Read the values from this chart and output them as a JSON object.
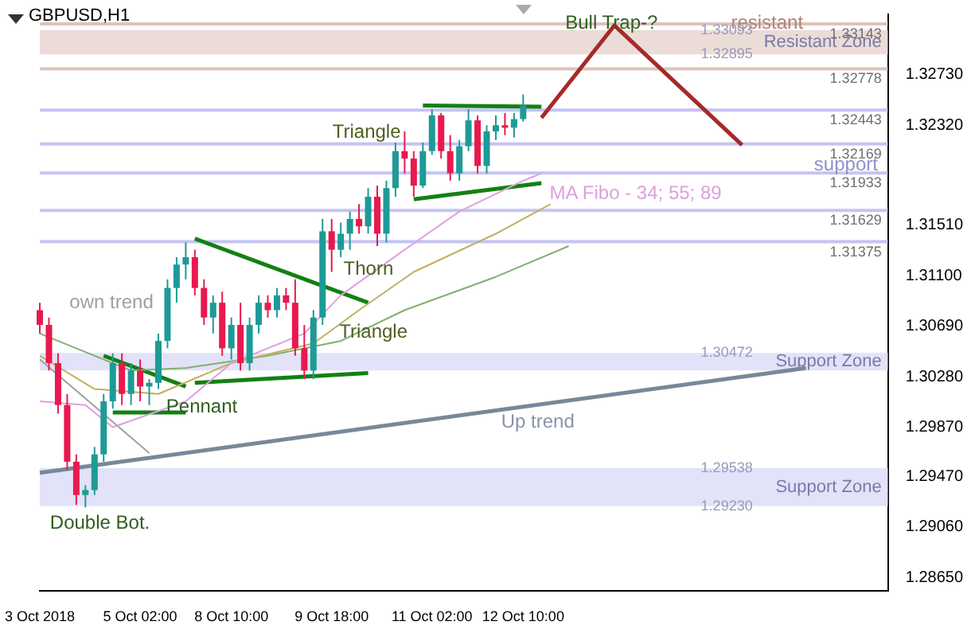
{
  "chart_data": {
    "type": "candlestick",
    "title": "GBPUSD,H1",
    "categories": [
      "3 Oct 2018",
      null,
      null,
      null,
      null,
      null,
      null,
      null,
      null,
      null,
      null,
      "5 Oct 02:00",
      null,
      null,
      null,
      null,
      null,
      null,
      null,
      null,
      null,
      "8 Oct 10:00",
      null,
      null,
      null,
      null,
      null,
      null,
      null,
      null,
      null,
      null,
      "9 Oct 18:00",
      null,
      null,
      null,
      null,
      null,
      null,
      null,
      null,
      null,
      null,
      "11 Oct 02:00",
      null,
      null,
      null,
      null,
      null,
      null,
      null,
      null,
      null,
      "12 Oct 10:00",
      null,
      null,
      null,
      null,
      null,
      null,
      null,
      null,
      null,
      null,
      null,
      null,
      null,
      null,
      null,
      null,
      null,
      null,
      null,
      null,
      null,
      null,
      null,
      null,
      null,
      null,
      null,
      null,
      null,
      null,
      null,
      null,
      null,
      null,
      null,
      null,
      null,
      null,
      null,
      null
    ],
    "ohlc": [
      [
        1.3082,
        1.3088,
        1.3063,
        1.307
      ],
      [
        1.307,
        1.3076,
        1.3033,
        1.3039
      ],
      [
        1.3039,
        1.3047,
        1.2998,
        1.3005
      ],
      [
        1.3005,
        1.3014,
        1.2952,
        1.2959
      ],
      [
        1.2959,
        1.2965,
        1.2924,
        1.2932
      ],
      [
        1.2932,
        1.294,
        1.2922,
        1.2936
      ],
      [
        1.2936,
        1.2971,
        1.2932,
        1.2965
      ],
      [
        1.2965,
        1.3014,
        1.2959,
        1.3008
      ],
      [
        1.3008,
        1.3047,
        1.3002,
        1.3039
      ],
      [
        1.3039,
        1.3047,
        1.3005,
        1.3014
      ],
      [
        1.3014,
        1.3039,
        1.3005,
        1.3033
      ],
      [
        1.3033,
        1.3042,
        1.3008,
        1.302
      ],
      [
        1.302,
        1.3026,
        1.3005,
        1.3023
      ],
      [
        1.3023,
        1.3063,
        1.3018,
        1.3057
      ],
      [
        1.3057,
        1.3107,
        1.3051,
        1.31
      ],
      [
        1.31,
        1.3125,
        1.3088,
        1.3119
      ],
      [
        1.3119,
        1.3137,
        1.3107,
        1.3125
      ],
      [
        1.3125,
        1.3131,
        1.3094,
        1.31
      ],
      [
        1.31,
        1.3107,
        1.307,
        1.3076
      ],
      [
        1.3076,
        1.3094,
        1.3063,
        1.3088
      ],
      [
        1.3088,
        1.3097,
        1.3045,
        1.3051
      ],
      [
        1.3051,
        1.3076,
        1.3042,
        1.307
      ],
      [
        1.307,
        1.3088,
        1.3033,
        1.3039
      ],
      [
        1.3039,
        1.3076,
        1.3033,
        1.307
      ],
      [
        1.307,
        1.3094,
        1.3063,
        1.3088
      ],
      [
        1.3088,
        1.3094,
        1.3076,
        1.3082
      ],
      [
        1.3082,
        1.31,
        1.3076,
        1.3094
      ],
      [
        1.3094,
        1.31,
        1.3082,
        1.3088
      ],
      [
        1.3088,
        1.3107,
        1.3045,
        1.3051
      ],
      [
        1.3051,
        1.307,
        1.3026,
        1.3033
      ],
      [
        1.3033,
        1.3082,
        1.3026,
        1.3076
      ],
      [
        1.3076,
        1.3156,
        1.307,
        1.3146
      ],
      [
        1.3146,
        1.3156,
        1.3113,
        1.3131
      ],
      [
        1.3131,
        1.3153,
        1.3125,
        1.3144
      ],
      [
        1.3144,
        1.3162,
        1.3131,
        1.3156
      ],
      [
        1.3156,
        1.3168,
        1.3144,
        1.315
      ],
      [
        1.315,
        1.3181,
        1.3144,
        1.3174
      ],
      [
        1.3174,
        1.3183,
        1.3134,
        1.3144
      ],
      [
        1.3144,
        1.3187,
        1.3137,
        1.3181
      ],
      [
        1.3181,
        1.3218,
        1.3174,
        1.3211
      ],
      [
        1.3211,
        1.3227,
        1.3193,
        1.3205
      ],
      [
        1.3205,
        1.3211,
        1.3174,
        1.3183
      ],
      [
        1.3183,
        1.3218,
        1.3181,
        1.3211
      ],
      [
        1.3211,
        1.3245,
        1.3208,
        1.324
      ],
      [
        1.324,
        1.3242,
        1.3205,
        1.3211
      ],
      [
        1.3211,
        1.3224,
        1.3187,
        1.3193
      ],
      [
        1.3193,
        1.322,
        1.3187,
        1.3215
      ],
      [
        1.3215,
        1.3245,
        1.3211,
        1.3236
      ],
      [
        1.3236,
        1.324,
        1.3193,
        1.3199
      ],
      [
        1.3199,
        1.3232,
        1.3193,
        1.3227
      ],
      [
        1.3227,
        1.324,
        1.322,
        1.3232
      ],
      [
        1.3232,
        1.3242,
        1.3224,
        1.323
      ],
      [
        1.323,
        1.3242,
        1.3222,
        1.3237
      ],
      [
        1.3237,
        1.3257,
        1.3235,
        1.3248
      ],
      null,
      null,
      null,
      null,
      null,
      null,
      null,
      null,
      null,
      null,
      null,
      null,
      null,
      null,
      null,
      null,
      null,
      null,
      null,
      null,
      null,
      null,
      null,
      null,
      null,
      null,
      null,
      null,
      null,
      null,
      null,
      null,
      null,
      null,
      null,
      null,
      null,
      null,
      null,
      null
    ],
    "colors": [
      "#e8194f",
      "#e8194f",
      "#e8194f",
      "#e8194f",
      "#e8194f",
      "#1e9a96",
      "#1e9a96",
      "#1e9a96",
      "#1e9a96",
      "#e8194f",
      "#1e9a96",
      "#e8194f",
      "#1e9a96",
      "#1e9a96",
      "#1e9a96",
      "#1e9a96",
      "#1e9a96",
      "#e8194f",
      "#e8194f",
      "#1e9a96",
      "#e8194f",
      "#1e9a96",
      "#e8194f",
      "#1e9a96",
      "#1e9a96",
      "#e8194f",
      "#1e9a96",
      "#e8194f",
      "#e8194f",
      "#e8194f",
      "#1e9a96",
      "#1e9a96",
      "#e8194f",
      "#1e9a96",
      "#1e9a96",
      "#e8194f",
      "#1e9a96",
      "#e8194f",
      "#1e9a96",
      "#1e9a96",
      "#e8194f",
      "#e8194f",
      "#1e9a96",
      "#1e9a96",
      "#e8194f",
      "#e8194f",
      "#1e9a96",
      "#1e9a96",
      "#e8194f",
      "#1e9a96",
      "#1e9a96",
      "#e8194f",
      "#1e9a96",
      "#1e9a96",
      null,
      null,
      null,
      null,
      null,
      null,
      null,
      null,
      null,
      null,
      null,
      null,
      null,
      null,
      null,
      null,
      null,
      null,
      null,
      null,
      null,
      null,
      null,
      null,
      null,
      null,
      null,
      null,
      null,
      null,
      null,
      null,
      null,
      null,
      null,
      null,
      null,
      null,
      null,
      null
    ],
    "series": [
      {
        "type": "line",
        "color": "#e0a0e0",
        "values": [
          1.3008,
          null,
          null,
          null,
          null,
          1.3005,
          null,
          null,
          1.2987,
          null,
          null,
          null,
          null,
          null,
          null,
          null,
          1.3008,
          null,
          null,
          null,
          null,
          1.3039,
          null,
          null,
          null,
          null,
          null,
          null,
          null,
          1.3063,
          null,
          null,
          null,
          1.3094,
          null,
          null,
          null,
          null,
          null,
          null,
          1.3131,
          null,
          null,
          null,
          null,
          null,
          1.3162,
          null,
          null,
          null,
          null,
          null,
          null,
          1.3187,
          null,
          1.3193,
          null,
          null,
          null,
          null,
          null,
          null,
          null,
          null,
          null,
          null,
          null,
          null,
          null,
          null,
          null,
          null,
          null,
          null,
          null,
          null,
          null,
          null,
          null,
          null,
          null,
          null,
          null,
          null,
          null,
          null,
          null,
          null,
          null,
          null,
          null,
          null,
          null,
          null
        ]
      },
      {
        "type": "line",
        "color": "#c0b060",
        "values": [
          1.3045,
          null,
          null,
          null,
          null,
          null,
          1.3018,
          null,
          null,
          null,
          null,
          null,
          null,
          1.3014,
          null,
          null,
          null,
          null,
          null,
          null,
          null,
          1.3039,
          null,
          null,
          null,
          null,
          null,
          null,
          null,
          null,
          1.3055,
          null,
          null,
          null,
          null,
          1.3082,
          null,
          null,
          null,
          null,
          null,
          1.3113,
          null,
          null,
          null,
          null,
          null,
          null,
          null,
          null,
          1.3144,
          null,
          null,
          null,
          null,
          null,
          1.3168,
          null,
          null,
          null,
          null,
          null,
          null,
          null,
          null,
          null,
          null,
          null,
          null,
          null,
          null,
          null,
          null,
          null,
          null,
          null,
          null,
          null,
          null,
          null,
          null,
          null,
          null,
          null,
          null,
          null,
          null,
          null,
          null,
          null,
          null,
          null,
          null,
          null
        ]
      },
      {
        "type": "line",
        "color": "#80b070",
        "values": [
          1.3063,
          null,
          null,
          null,
          null,
          null,
          null,
          null,
          null,
          null,
          1.3033,
          null,
          null,
          null,
          null,
          null,
          1.3035,
          null,
          null,
          null,
          null,
          null,
          null,
          null,
          null,
          1.3045,
          null,
          null,
          null,
          null,
          null,
          null,
          null,
          1.3057,
          null,
          null,
          null,
          null,
          null,
          null,
          1.3082,
          null,
          null,
          null,
          null,
          null,
          null,
          null,
          null,
          null,
          1.3109,
          null,
          null,
          null,
          null,
          null,
          null,
          null,
          1.3134,
          null,
          null,
          null,
          null,
          null,
          null,
          null,
          null,
          null,
          null,
          null,
          null,
          null,
          null,
          null,
          null,
          null,
          null,
          null,
          null,
          null,
          null,
          null,
          null,
          null,
          null,
          null,
          null,
          null,
          null,
          null,
          null,
          null,
          null,
          null
        ]
      },
      {
        "type": "line",
        "color": "#a0a0a0",
        "values": [
          1.3042,
          null,
          null,
          null,
          null,
          null,
          null,
          null,
          null,
          null,
          null,
          null,
          1.2966,
          null,
          null,
          null,
          null,
          null,
          null,
          null,
          null,
          null,
          null,
          null,
          null,
          null,
          null,
          null,
          null,
          null,
          null,
          null,
          null,
          null,
          null,
          null,
          null,
          null,
          null,
          null,
          null,
          null,
          null,
          null,
          null,
          null,
          null,
          null,
          null,
          null,
          null,
          null,
          null,
          null,
          null,
          null,
          null,
          null,
          null,
          null,
          null,
          null,
          null,
          null,
          null,
          null,
          null,
          null,
          null,
          null,
          null,
          null,
          null,
          null,
          null,
          null,
          null,
          null,
          null,
          null,
          null,
          null,
          null,
          null,
          null,
          null,
          null,
          null,
          null,
          null,
          null,
          null,
          null,
          null
        ]
      },
      {
        "type": "line",
        "color": "#778899",
        "values": [
          1.295,
          null,
          null,
          null,
          null,
          null,
          null,
          null,
          null,
          null,
          null,
          null,
          null,
          null,
          null,
          null,
          null,
          null,
          null,
          null,
          null,
          null,
          null,
          null,
          null,
          null,
          null,
          null,
          null,
          null,
          null,
          null,
          null,
          null,
          null,
          null,
          null,
          null,
          null,
          null,
          null,
          null,
          null,
          null,
          null,
          null,
          null,
          null,
          null,
          null,
          null,
          null,
          null,
          null,
          null,
          null,
          null,
          null,
          null,
          null,
          null,
          null,
          null,
          null,
          null,
          null,
          null,
          null,
          null,
          null,
          null,
          null,
          null,
          null,
          null,
          null,
          null,
          null,
          null,
          null,
          null,
          null,
          null,
          null,
          1.3035,
          null,
          null,
          null,
          null,
          null,
          null,
          null,
          null,
          null
        ]
      },
      {
        "type": "line",
        "color": "#138013",
        "values": [
          null,
          null,
          null,
          null,
          null,
          null,
          null,
          1.3045,
          null,
          null,
          null,
          null,
          null,
          null,
          null,
          null,
          1.302,
          null,
          null,
          null,
          null,
          null,
          null,
          null,
          null,
          null,
          null,
          null,
          null,
          null,
          null,
          null,
          null,
          null,
          null,
          null,
          null,
          null,
          null,
          null,
          null,
          null,
          null,
          null,
          null,
          null,
          null,
          null,
          null,
          null,
          null,
          null,
          null,
          null,
          null,
          null,
          null,
          null,
          null,
          null,
          null,
          null,
          null,
          null,
          null,
          null,
          null,
          null,
          null,
          null,
          null,
          null,
          null,
          null,
          null,
          null,
          null,
          null,
          null,
          null,
          null,
          null,
          null,
          null,
          null,
          null,
          null,
          null,
          null,
          null,
          null,
          null,
          null,
          null
        ]
      },
      {
        "type": "line",
        "color": "#138013",
        "values": [
          null,
          null,
          null,
          null,
          null,
          null,
          null,
          null,
          1.2999,
          null,
          null,
          null,
          null,
          null,
          null,
          null,
          1.2999,
          null,
          null,
          null,
          null,
          null,
          null,
          null,
          null,
          null,
          null,
          null,
          null,
          null,
          null,
          null,
          null,
          null,
          null,
          null,
          null,
          null,
          null,
          null,
          null,
          null,
          null,
          null,
          null,
          null,
          null,
          null,
          null,
          null,
          null,
          null,
          null,
          null,
          null,
          null,
          null,
          null,
          null,
          null,
          null,
          null,
          null,
          null,
          null,
          null,
          null,
          null,
          null,
          null,
          null,
          null,
          null,
          null,
          null,
          null,
          null,
          null,
          null,
          null,
          null,
          null,
          null,
          null,
          null,
          null,
          null,
          null,
          null,
          null,
          null,
          null,
          null,
          null
        ]
      },
      {
        "type": "line",
        "color": "#138013",
        "values": [
          null,
          null,
          null,
          null,
          null,
          null,
          null,
          null,
          null,
          null,
          null,
          null,
          null,
          null,
          null,
          null,
          null,
          1.314,
          null,
          null,
          null,
          null,
          null,
          null,
          null,
          null,
          null,
          null,
          null,
          null,
          null,
          null,
          null,
          null,
          null,
          null,
          1.3088,
          null,
          null,
          null,
          null,
          null,
          null,
          null,
          null,
          null,
          null,
          null,
          null,
          null,
          null,
          null,
          null,
          null,
          null,
          null,
          null,
          null,
          null,
          null,
          null,
          null,
          null,
          null,
          null,
          null,
          null,
          null,
          null,
          null,
          null,
          null,
          null,
          null,
          null,
          null,
          null,
          null,
          null,
          null,
          null,
          null,
          null,
          null,
          null,
          null,
          null,
          null,
          null,
          null,
          null,
          null,
          null,
          null
        ]
      },
      {
        "type": "line",
        "color": "#138013",
        "values": [
          null,
          null,
          null,
          null,
          null,
          null,
          null,
          null,
          null,
          null,
          null,
          null,
          null,
          null,
          null,
          null,
          null,
          1.3023,
          null,
          null,
          null,
          null,
          null,
          null,
          null,
          null,
          null,
          null,
          null,
          null,
          null,
          null,
          null,
          null,
          null,
          null,
          1.3031,
          null,
          null,
          null,
          null,
          null,
          null,
          null,
          null,
          null,
          null,
          null,
          null,
          null,
          null,
          null,
          null,
          null,
          null,
          null,
          null,
          null,
          null,
          null,
          null,
          null,
          null,
          null,
          null,
          null,
          null,
          null,
          null,
          null,
          null,
          null,
          null,
          null,
          null,
          null,
          null,
          null,
          null,
          null,
          null,
          null,
          null,
          null,
          null,
          null,
          null,
          null,
          null,
          null,
          null,
          null,
          null,
          null
        ]
      },
      {
        "type": "line",
        "color": "#138013",
        "values": [
          null,
          null,
          null,
          null,
          null,
          null,
          null,
          null,
          null,
          null,
          null,
          null,
          null,
          null,
          null,
          null,
          null,
          null,
          null,
          null,
          null,
          null,
          null,
          null,
          null,
          null,
          null,
          null,
          null,
          null,
          null,
          null,
          null,
          null,
          null,
          null,
          null,
          null,
          null,
          null,
          null,
          null,
          1.3248,
          null,
          null,
          null,
          null,
          null,
          null,
          null,
          null,
          null,
          null,
          null,
          null,
          1.3247,
          null,
          null,
          null,
          null,
          null,
          null,
          null,
          null,
          null,
          null,
          null,
          null,
          null,
          null,
          null,
          null,
          null,
          null,
          null,
          null,
          null,
          null,
          null,
          null,
          null,
          null,
          null,
          null,
          null,
          null,
          null,
          null,
          null,
          null,
          null,
          null,
          null,
          null
        ]
      },
      {
        "type": "line",
        "color": "#138013",
        "values": [
          null,
          null,
          null,
          null,
          null,
          null,
          null,
          null,
          null,
          null,
          null,
          null,
          null,
          null,
          null,
          null,
          null,
          null,
          null,
          null,
          null,
          null,
          null,
          null,
          null,
          null,
          null,
          null,
          null,
          null,
          null,
          null,
          null,
          null,
          null,
          null,
          null,
          null,
          null,
          null,
          null,
          1.3172,
          null,
          null,
          null,
          null,
          null,
          null,
          null,
          null,
          null,
          null,
          null,
          null,
          null,
          1.3185,
          null,
          null,
          null,
          null,
          null,
          null,
          null,
          null,
          null,
          null,
          null,
          null,
          null,
          null,
          null,
          null,
          null,
          null,
          null,
          null,
          null,
          null,
          null,
          null,
          null,
          null,
          null,
          null,
          null,
          null,
          null,
          null,
          null,
          null,
          null,
          null,
          null,
          null
        ]
      },
      {
        "type": "line",
        "color": "#a52a2a",
        "values": [
          null,
          null,
          null,
          null,
          null,
          null,
          null,
          null,
          null,
          null,
          null,
          null,
          null,
          null,
          null,
          null,
          null,
          null,
          null,
          null,
          null,
          null,
          null,
          null,
          null,
          null,
          null,
          null,
          null,
          null,
          null,
          null,
          null,
          null,
          null,
          null,
          null,
          null,
          null,
          null,
          null,
          null,
          null,
          null,
          null,
          null,
          null,
          null,
          null,
          null,
          null,
          null,
          null,
          null,
          null,
          1.3238,
          null,
          null,
          null,
          null,
          null,
          null,
          null,
          1.3313,
          null,
          null,
          null,
          null,
          null,
          null,
          null,
          null,
          null,
          null,
          null,
          null,
          null,
          1.3216,
          null,
          null,
          null,
          null,
          null,
          null,
          null,
          null,
          null,
          null,
          null,
          null,
          null,
          null,
          null,
          null
        ]
      }
    ],
    "ylim": [
      1.2854,
      1.3322
    ],
    "yticks": [
      {
        "value": 1.2865,
        "label": "1.28650"
      },
      {
        "value": 1.2906,
        "label": "1.29060"
      },
      {
        "value": 1.2947,
        "label": "1.29470"
      },
      {
        "value": 1.2987,
        "label": "1.29870"
      },
      {
        "value": 1.3028,
        "label": "1.30280"
      },
      {
        "value": 1.3069,
        "label": "1.30690"
      },
      {
        "value": 1.311,
        "label": "1.31100"
      },
      {
        "value": 1.3151,
        "label": "1.31510"
      },
      {
        "value": 1.3232,
        "label": "1.32320"
      },
      {
        "value": 1.3273,
        "label": "1.32730"
      }
    ],
    "ref_lines": [
      {
        "axis": "y",
        "value": 1.33143,
        "label": "1.33143",
        "color": "#dcc4bc"
      },
      {
        "axis": "y",
        "value": 1.32778,
        "label": "1.32778",
        "color": "#dcc4bc"
      },
      {
        "axis": "y",
        "value": 1.32443,
        "label": "1.32443",
        "color": "#c4c4f4"
      },
      {
        "axis": "y",
        "value": 1.32169,
        "label": "1.32169",
        "color": "#c4c4f4"
      },
      {
        "axis": "y",
        "value": 1.31933,
        "label": "1.31933",
        "color": "#c4c4f4"
      },
      {
        "axis": "y",
        "value": 1.31629,
        "label": "1.31629",
        "color": "#c4c4f4"
      },
      {
        "axis": "y",
        "value": 1.31375,
        "label": "1.31375",
        "color": "#c4c4f4"
      }
    ],
    "bands": [
      {
        "axis": "y",
        "from": 1.32895,
        "to": 1.33093,
        "label": "Resistant Zone",
        "color": "#ecdcd8"
      },
      {
        "axis": "y",
        "from": 1.3033,
        "to": 1.30472,
        "label": "Support Zone",
        "color": "#e2e2f8"
      },
      {
        "axis": "y",
        "from": 1.2923,
        "to": 1.29538,
        "label": "Support Zone",
        "color": "#e2e2f8"
      }
    ],
    "annotations": [
      "Bull Trap-?",
      "Triangle",
      "Triangle",
      "Thorn",
      "Pennant",
      "Double Bot.",
      "own trend",
      "Up trend",
      "MA Fibo - 34; 55; 89",
      "resistant",
      "support",
      {
        "text": "1.33093",
        "y": 1.33093
      },
      {
        "text": "1.32895",
        "y": 1.32895
      },
      {
        "text": "1.30472",
        "y": 1.30472
      },
      {
        "text": "1.29538",
        "y": 1.29538
      },
      {
        "text": "1.29230",
        "y": 1.2923
      }
    ],
    "grid": false,
    "legend": false
  }
}
